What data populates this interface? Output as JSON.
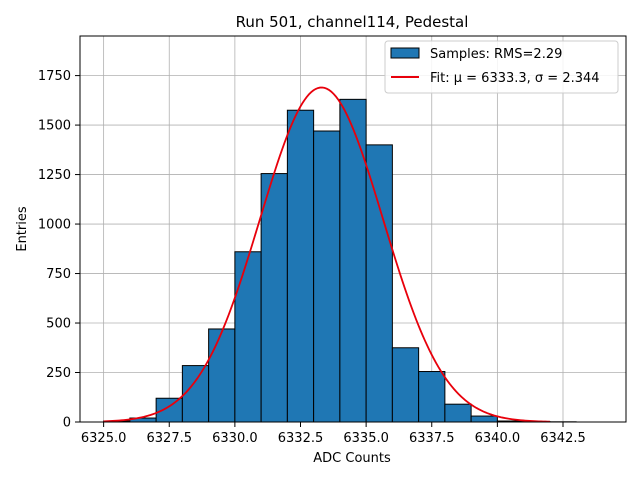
{
  "chart_data": {
    "type": "bar",
    "title": "Run 501, channel114, Pedestal",
    "xlabel": "ADC Counts",
    "ylabel": "Entries",
    "xlim": [
      6324.1,
      6344.9
    ],
    "ylim": [
      0,
      1950
    ],
    "xticks": [
      6325.0,
      6327.5,
      6330.0,
      6332.5,
      6335.0,
      6337.5,
      6340.0,
      6342.5
    ],
    "xtick_labels": [
      "6325.0",
      "6327.5",
      "6330.0",
      "6332.5",
      "6335.0",
      "6337.5",
      "6340.0",
      "6342.5"
    ],
    "yticks": [
      0,
      250,
      500,
      750,
      1000,
      1250,
      1500,
      1750
    ],
    "ytick_labels": [
      "0",
      "250",
      "500",
      "750",
      "1000",
      "1250",
      "1500",
      "1750"
    ],
    "grid": true,
    "histogram": {
      "name": "Samples: RMS=2.29",
      "color": "#1f77b4",
      "edgecolor": "#000000",
      "bin_edges": [
        6325.0,
        6326.0,
        6327.0,
        6328.0,
        6329.0,
        6330.0,
        6331.0,
        6332.0,
        6333.0,
        6334.0,
        6335.0,
        6336.0,
        6337.0,
        6338.0,
        6339.0,
        6340.0,
        6341.0,
        6342.0,
        6343.0,
        6344.0
      ],
      "counts": [
        5,
        20,
        120,
        285,
        470,
        860,
        1255,
        1575,
        1470,
        1630,
        1400,
        375,
        255,
        90,
        30,
        5,
        2,
        1,
        0
      ]
    },
    "fit": {
      "name": "Fit: μ = 6333.3, σ = 2.344",
      "legend_label": "Fit: μ = 6333.3, σ = 2.344",
      "color": "#e8000b",
      "type": "gaussian",
      "mu": 6333.3,
      "sigma": 2.344,
      "amplitude": 1690,
      "x_range": [
        6325.0,
        6342.0
      ]
    },
    "legend": {
      "position": "top-right",
      "entries": [
        "Samples: RMS=2.29",
        "Fit: μ = 6333.3, σ = 2.344"
      ]
    }
  }
}
